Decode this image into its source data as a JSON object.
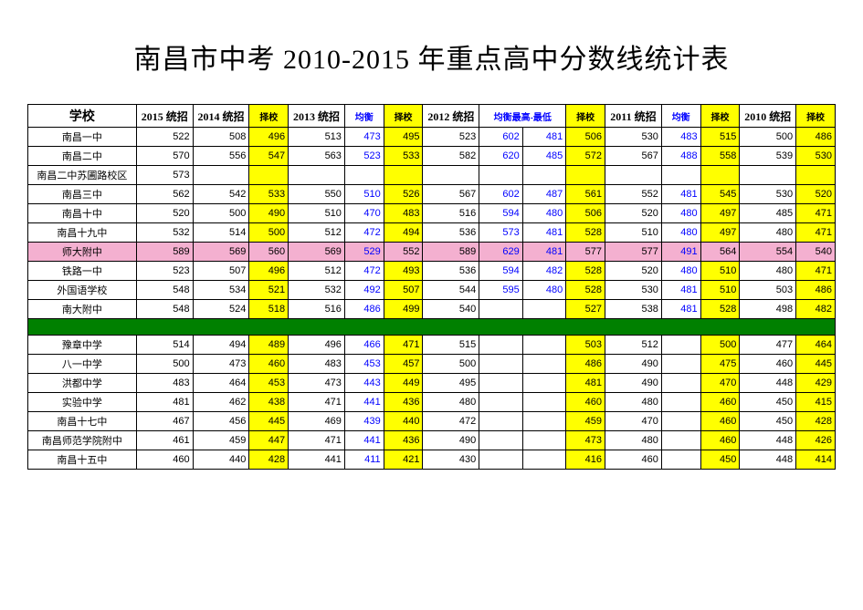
{
  "title": "南昌市中考 2010-2015 年重点高中分数线统计表",
  "headers": {
    "school": "学校",
    "y2015": "2015 统招",
    "y2014": "2014 统招",
    "y2014z": "择校",
    "y2013": "2013 统招",
    "y2013j": "均衡",
    "y2013z": "择校",
    "y2012": "2012 统招",
    "y2012j": "均衡最高-最低",
    "y2012z": "择校",
    "y2011": "2011 统招",
    "y2011j": "均衡",
    "y2011z": "择校",
    "y2010": "2010 统招",
    "y2010z": "择校"
  },
  "colors": {
    "blue": "#0000ff",
    "yellow": "#ffff00",
    "pink": "#f4b0d0",
    "green": "#008000"
  },
  "rows_a": [
    {
      "school": "南昌一中",
      "c2015": "522",
      "c2014": "508",
      "c2014z": "496",
      "c2013": "513",
      "c2013j": "473",
      "c2013z": "495",
      "c2012": "523",
      "c2012jh": "602",
      "c2012jl": "481",
      "c2012z": "506",
      "c2011": "530",
      "c2011j": "483",
      "c2011z": "515",
      "c2010": "500",
      "c2010z": "486"
    },
    {
      "school": "南昌二中",
      "c2015": "570",
      "c2014": "556",
      "c2014z": "547",
      "c2013": "563",
      "c2013j": "523",
      "c2013z": "533",
      "c2012": "582",
      "c2012jh": "620",
      "c2012jl": "485",
      "c2012z": "572",
      "c2011": "567",
      "c2011j": "488",
      "c2011z": "558",
      "c2010": "539",
      "c2010z": "530"
    },
    {
      "school": "南昌二中苏圃路校区",
      "c2015": "573",
      "c2014": "",
      "c2014z": "",
      "c2013": "",
      "c2013j": "",
      "c2013z": "",
      "c2012": "",
      "c2012jh": "",
      "c2012jl": "",
      "c2012z": "",
      "c2011": "",
      "c2011j": "",
      "c2011z": "",
      "c2010": "",
      "c2010z": ""
    },
    {
      "school": "南昌三中",
      "c2015": "562",
      "c2014": "542",
      "c2014z": "533",
      "c2013": "550",
      "c2013j": "510",
      "c2013z": "526",
      "c2012": "567",
      "c2012jh": "602",
      "c2012jl": "487",
      "c2012z": "561",
      "c2011": "552",
      "c2011j": "481",
      "c2011z": "545",
      "c2010": "530",
      "c2010z": "520"
    },
    {
      "school": "南昌十中",
      "c2015": "520",
      "c2014": "500",
      "c2014z": "490",
      "c2013": "510",
      "c2013j": "470",
      "c2013z": "483",
      "c2012": "516",
      "c2012jh": "594",
      "c2012jl": "480",
      "c2012z": "506",
      "c2011": "520",
      "c2011j": "480",
      "c2011z": "497",
      "c2010": "485",
      "c2010z": "471"
    },
    {
      "school": "南昌十九中",
      "c2015": "532",
      "c2014": "514",
      "c2014z": "500",
      "c2013": "512",
      "c2013j": "472",
      "c2013z": "494",
      "c2012": "536",
      "c2012jh": "573",
      "c2012jl": "481",
      "c2012z": "528",
      "c2011": "510",
      "c2011j": "480",
      "c2011z": "497",
      "c2010": "480",
      "c2010z": "471"
    },
    {
      "school": "师大附中",
      "c2015": "589",
      "c2014": "569",
      "c2014z": "560",
      "c2013": "569",
      "c2013j": "529",
      "c2013z": "552",
      "c2012": "589",
      "c2012jh": "629",
      "c2012jl": "481",
      "c2012z": "577",
      "c2011": "577",
      "c2011j": "491",
      "c2011z": "564",
      "c2010": "554",
      "c2010z": "540",
      "highlight": true
    },
    {
      "school": "铁路一中",
      "c2015": "523",
      "c2014": "507",
      "c2014z": "496",
      "c2013": "512",
      "c2013j": "472",
      "c2013z": "493",
      "c2012": "536",
      "c2012jh": "594",
      "c2012jl": "482",
      "c2012z": "528",
      "c2011": "520",
      "c2011j": "480",
      "c2011z": "510",
      "c2010": "480",
      "c2010z": "471"
    },
    {
      "school": "外国语学校",
      "c2015": "548",
      "c2014": "534",
      "c2014z": "521",
      "c2013": "532",
      "c2013j": "492",
      "c2013z": "507",
      "c2012": "544",
      "c2012jh": "595",
      "c2012jl": "480",
      "c2012z": "528",
      "c2011": "530",
      "c2011j": "481",
      "c2011z": "510",
      "c2010": "503",
      "c2010z": "486"
    },
    {
      "school": "南大附中",
      "c2015": "548",
      "c2014": "524",
      "c2014z": "518",
      "c2013": "516",
      "c2013j": "486",
      "c2013z": "499",
      "c2012": "540",
      "c2012jh": "",
      "c2012jl": "",
      "c2012z": "527",
      "c2011": "538",
      "c2011j": "481",
      "c2011z": "528",
      "c2010": "498",
      "c2010z": "482"
    }
  ],
  "rows_b": [
    {
      "school": "豫章中学",
      "c2015": "514",
      "c2014": "494",
      "c2014z": "489",
      "c2013": "496",
      "c2013j": "466",
      "c2013z": "471",
      "c2012": "515",
      "c2012jh": "",
      "c2012jl": "",
      "c2012z": "503",
      "c2011": "512",
      "c2011j": "",
      "c2011z": "500",
      "c2010": "477",
      "c2010z": "464"
    },
    {
      "school": "八一中学",
      "c2015": "500",
      "c2014": "473",
      "c2014z": "460",
      "c2013": "483",
      "c2013j": "453",
      "c2013z": "457",
      "c2012": "500",
      "c2012jh": "",
      "c2012jl": "",
      "c2012z": "486",
      "c2011": "490",
      "c2011j": "",
      "c2011z": "475",
      "c2010": "460",
      "c2010z": "445"
    },
    {
      "school": "洪都中学",
      "c2015": "483",
      "c2014": "464",
      "c2014z": "453",
      "c2013": "473",
      "c2013j": "443",
      "c2013z": "449",
      "c2012": "495",
      "c2012jh": "",
      "c2012jl": "",
      "c2012z": "481",
      "c2011": "490",
      "c2011j": "",
      "c2011z": "470",
      "c2010": "448",
      "c2010z": "429"
    },
    {
      "school": "实验中学",
      "c2015": "481",
      "c2014": "462",
      "c2014z": "438",
      "c2013": "471",
      "c2013j": "441",
      "c2013z": "436",
      "c2012": "480",
      "c2012jh": "",
      "c2012jl": "",
      "c2012z": "460",
      "c2011": "480",
      "c2011j": "",
      "c2011z": "460",
      "c2010": "450",
      "c2010z": "415"
    },
    {
      "school": "南昌十七中",
      "c2015": "467",
      "c2014": "456",
      "c2014z": "445",
      "c2013": "469",
      "c2013j": "439",
      "c2013z": "440",
      "c2012": "472",
      "c2012jh": "",
      "c2012jl": "",
      "c2012z": "459",
      "c2011": "470",
      "c2011j": "",
      "c2011z": "460",
      "c2010": "450",
      "c2010z": "428"
    },
    {
      "school": "南昌师范学院附中",
      "c2015": "461",
      "c2014": "459",
      "c2014z": "447",
      "c2013": "471",
      "c2013j": "441",
      "c2013z": "436",
      "c2012": "490",
      "c2012jh": "",
      "c2012jl": "",
      "c2012z": "473",
      "c2011": "480",
      "c2011j": "",
      "c2011z": "460",
      "c2010": "448",
      "c2010z": "426"
    },
    {
      "school": "南昌十五中",
      "c2015": "460",
      "c2014": "440",
      "c2014z": "428",
      "c2013": "441",
      "c2013j": "411",
      "c2013z": "421",
      "c2012": "430",
      "c2012jh": "",
      "c2012jl": "",
      "c2012z": "416",
      "c2011": "460",
      "c2011j": "",
      "c2011z": "450",
      "c2010": "448",
      "c2010z": "414"
    }
  ]
}
